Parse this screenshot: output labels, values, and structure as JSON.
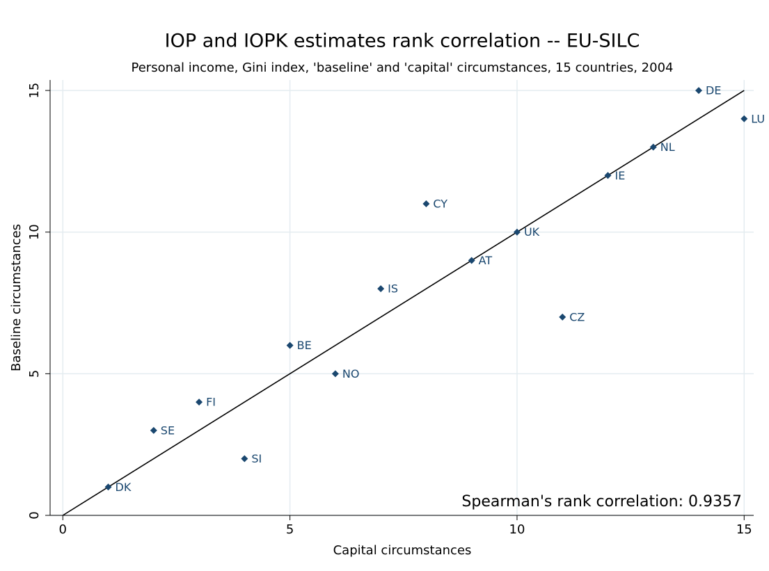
{
  "chart_data": {
    "type": "scatter",
    "title": "IOP and IOPK estimates rank correlation -- EU-SILC",
    "subtitle": "Personal income, Gini index, 'baseline' and 'capital' circumstances, 15 countries, 2004",
    "x_label": "Capital circumstances",
    "y_label": "Baseline circumstances",
    "annotation": "Spearman's rank correlation: 0.9357",
    "series": [
      {
        "color": "#1a476f",
        "labels": [
          "DK",
          "SE",
          "FI",
          "SI",
          "BE",
          "NO",
          "IS",
          "CY",
          "AT",
          "UK",
          "CZ",
          "IE",
          "NL",
          "DE",
          "LU"
        ],
        "x": [
          1,
          2,
          3,
          4,
          5,
          6,
          7,
          8,
          9,
          10,
          11,
          12,
          13,
          14,
          15
        ],
        "values": [
          1,
          3,
          4,
          2,
          6,
          5,
          8,
          11,
          9,
          10,
          7,
          12,
          13,
          15,
          14
        ]
      }
    ],
    "reference_line": {
      "color": "#000000",
      "x": [
        0,
        15
      ],
      "values": [
        0,
        15
      ]
    },
    "xlim": [
      -0.28,
      15.21
    ],
    "ylim": [
      0,
      15.37
    ],
    "xticks": [
      0,
      5,
      10,
      15
    ],
    "yticks": [
      0,
      5,
      10,
      15
    ],
    "grid": true
  }
}
